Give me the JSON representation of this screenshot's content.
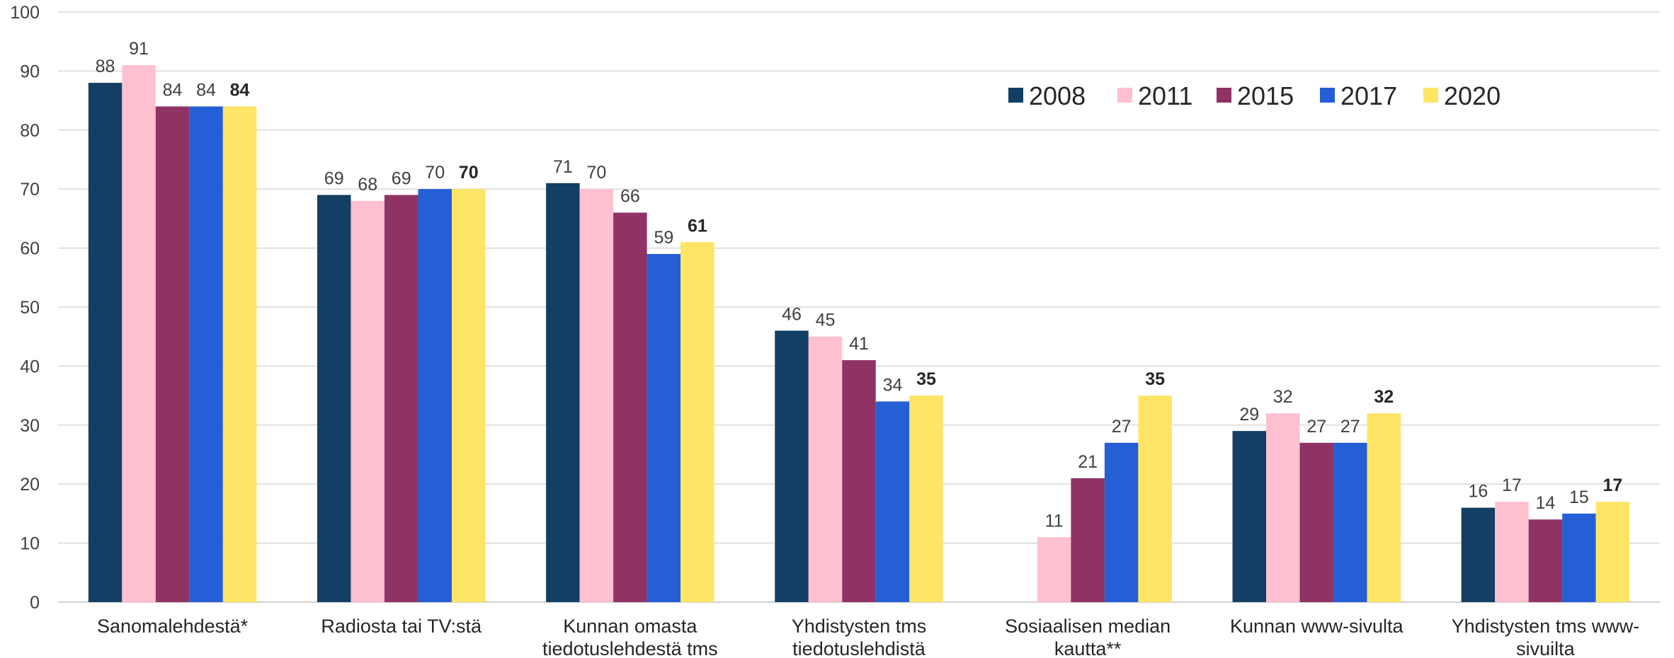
{
  "chart_data": {
    "type": "bar",
    "categories": [
      [
        "Sanomalehdestä*"
      ],
      [
        "Radiosta tai TV:stä"
      ],
      [
        "Kunnan omasta",
        "tiedotuslehdestä tms"
      ],
      [
        "Yhdistysten tms",
        "tiedotuslehdistä"
      ],
      [
        "Sosiaalisen median",
        "kautta**"
      ],
      [
        "Kunnan www-sivulta"
      ],
      [
        "Yhdistysten tms www-",
        "sivuilta"
      ]
    ],
    "series": [
      {
        "name": "2008",
        "color": "#123f63",
        "values": [
          88,
          69,
          71,
          46,
          null,
          29,
          16
        ]
      },
      {
        "name": "2011",
        "color": "#ffc0d0",
        "values": [
          91,
          68,
          70,
          45,
          11,
          32,
          17
        ]
      },
      {
        "name": "2015",
        "color": "#8e3364",
        "values": [
          84,
          69,
          66,
          41,
          21,
          27,
          14
        ]
      },
      {
        "name": "2017",
        "color": "#255fd6",
        "values": [
          84,
          70,
          59,
          34,
          27,
          27,
          15
        ]
      },
      {
        "name": "2020",
        "color": "#ffe566",
        "values": [
          84,
          70,
          61,
          35,
          35,
          32,
          17
        ]
      }
    ],
    "bold_series": "2020",
    "ylim": [
      0,
      100
    ],
    "yticks": [
      0,
      10,
      20,
      30,
      40,
      50,
      60,
      70,
      80,
      90,
      100
    ],
    "grid": true,
    "legend_position": "top-right",
    "title": "",
    "xlabel": "",
    "ylabel": ""
  }
}
